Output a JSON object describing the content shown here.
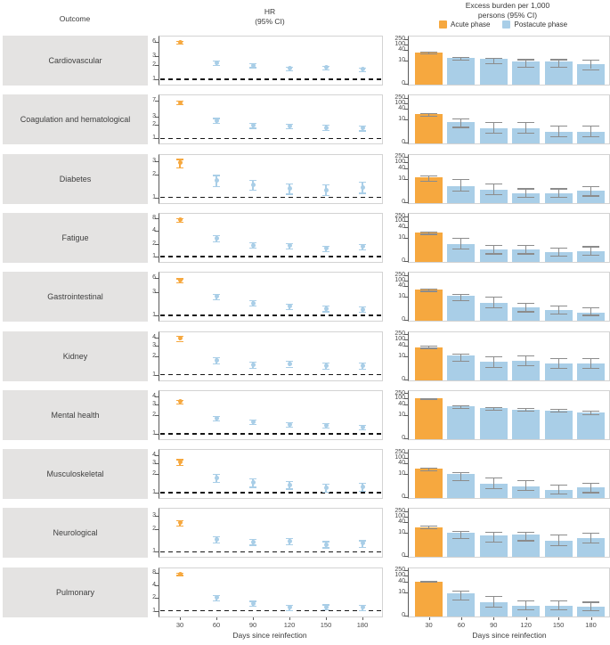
{
  "figure": {
    "header": {
      "outcome_col_label": "Outcome",
      "hr_title": [
        "HR",
        "(95% CI)"
      ],
      "burden_title": [
        "Excess burden per 1,000",
        "persons (95% CI)"
      ],
      "legend": [
        {
          "label": "Acute phase",
          "color": "#F6A83F"
        },
        {
          "label": "Postacute phase",
          "color": "#A9CEE7"
        }
      ]
    },
    "x_axis": {
      "label": "Days since reinfection",
      "ticks": [
        30,
        60,
        90,
        120,
        150,
        180
      ]
    }
  },
  "colors": {
    "acute": "#F6A83F",
    "postacute": "#A9CEE7",
    "bar_error": "#8C8C8C",
    "label_box": "#E4E3E2",
    "reference_line": "#161616",
    "axis": "#5a5a5a",
    "panel_border": "#D3D3D3"
  },
  "chart_data": [
    {
      "type": "scatter",
      "title": "HR (95% CI)",
      "x_label": "Days since reinfection",
      "x": [
        30,
        60,
        90,
        120,
        150,
        180
      ],
      "y_scale": "log",
      "reference_line_y": 1,
      "point_format": [
        "estimate",
        "ci_lower",
        "ci_upper"
      ],
      "series_note": "Day 30 = Acute phase (orange); days 60-180 = Postacute phase (blue)",
      "rows": [
        {
          "outcome": "Cardiovascular",
          "y_ticks": [
            1,
            2,
            3,
            6
          ],
          "points": [
            [
              5.8,
              5.4,
              6.3
            ],
            [
              2.2,
              2.0,
              2.4
            ],
            [
              1.95,
              1.78,
              2.15
            ],
            [
              1.7,
              1.55,
              1.85
            ],
            [
              1.75,
              1.6,
              1.9
            ],
            [
              1.6,
              1.45,
              1.75
            ]
          ]
        },
        {
          "outcome": "Coagulation and hematological",
          "y_ticks": [
            1,
            2,
            3,
            7
          ],
          "points": [
            [
              6.3,
              5.8,
              6.9
            ],
            [
              2.5,
              2.2,
              2.85
            ],
            [
              1.95,
              1.72,
              2.2
            ],
            [
              1.9,
              1.7,
              2.15
            ],
            [
              1.75,
              1.55,
              2.0
            ],
            [
              1.7,
              1.5,
              1.92
            ]
          ]
        },
        {
          "outcome": "Diabetes",
          "y_ticks": [
            1,
            2,
            3
          ],
          "points": [
            [
              2.85,
              2.5,
              3.2
            ],
            [
              1.65,
              1.4,
              1.97
            ],
            [
              1.45,
              1.25,
              1.7
            ],
            [
              1.3,
              1.12,
              1.52
            ],
            [
              1.25,
              1.07,
              1.47
            ],
            [
              1.35,
              1.15,
              1.6
            ]
          ]
        },
        {
          "outcome": "Fatigue",
          "y_ticks": [
            1,
            2,
            4,
            8
          ],
          "points": [
            [
              7.4,
              6.75,
              8.1
            ],
            [
              2.7,
              2.3,
              3.2
            ],
            [
              1.85,
              1.6,
              2.2
            ],
            [
              1.8,
              1.55,
              2.1
            ],
            [
              1.55,
              1.32,
              1.82
            ],
            [
              1.7,
              1.45,
              2.0
            ]
          ]
        },
        {
          "outcome": "Gastrointestinal",
          "y_ticks": [
            1,
            3,
            6
          ],
          "points": [
            [
              5.3,
              4.85,
              5.85
            ],
            [
              2.45,
              2.15,
              2.8
            ],
            [
              1.8,
              1.6,
              2.05
            ],
            [
              1.55,
              1.37,
              1.75
            ],
            [
              1.4,
              1.22,
              1.6
            ],
            [
              1.35,
              1.18,
              1.55
            ]
          ]
        },
        {
          "outcome": "Kidney",
          "y_ticks": [
            1,
            2,
            3,
            4
          ],
          "points": [
            [
              3.9,
              3.55,
              4.3
            ],
            [
              1.7,
              1.5,
              1.92
            ],
            [
              1.45,
              1.3,
              1.62
            ],
            [
              1.5,
              1.35,
              1.67
            ],
            [
              1.4,
              1.26,
              1.57
            ],
            [
              1.4,
              1.25,
              1.56
            ]
          ]
        },
        {
          "outcome": "Mental health",
          "y_ticks": [
            1,
            2,
            3,
            4
          ],
          "points": [
            [
              3.3,
              3.1,
              3.52
            ],
            [
              1.8,
              1.66,
              1.95
            ],
            [
              1.55,
              1.43,
              1.68
            ],
            [
              1.4,
              1.3,
              1.52
            ],
            [
              1.35,
              1.25,
              1.47
            ],
            [
              1.28,
              1.18,
              1.4
            ]
          ]
        },
        {
          "outcome": "Musculoskeletal",
          "y_ticks": [
            1,
            2,
            3,
            4
          ],
          "points": [
            [
              3.15,
              2.82,
              3.5
            ],
            [
              1.75,
              1.5,
              2.02
            ],
            [
              1.45,
              1.25,
              1.7
            ],
            [
              1.35,
              1.17,
              1.56
            ],
            [
              1.2,
              1.03,
              1.4
            ],
            [
              1.25,
              1.08,
              1.45
            ]
          ]
        },
        {
          "outcome": "Neurological",
          "y_ticks": [
            1,
            2,
            3
          ],
          "points": [
            [
              2.4,
              2.2,
              2.62
            ],
            [
              1.45,
              1.32,
              1.6
            ],
            [
              1.35,
              1.24,
              1.48
            ],
            [
              1.38,
              1.26,
              1.5
            ],
            [
              1.25,
              1.14,
              1.38
            ],
            [
              1.3,
              1.17,
              1.42
            ]
          ]
        },
        {
          "outcome": "Pulmonary",
          "y_ticks": [
            1,
            2,
            4,
            8
          ],
          "points": [
            [
              7.6,
              7.1,
              8.15
            ],
            [
              2.05,
              1.8,
              2.35
            ],
            [
              1.5,
              1.3,
              1.73
            ],
            [
              1.2,
              1.04,
              1.4
            ],
            [
              1.25,
              1.1,
              1.43
            ],
            [
              1.2,
              1.05,
              1.38
            ]
          ]
        }
      ]
    },
    {
      "type": "bar",
      "title": "Excess burden per 1,000 persons (95% CI)",
      "x_label": "Days since reinfection",
      "x": [
        30,
        60,
        90,
        120,
        150,
        180
      ],
      "y_scale": "symlog",
      "y_ticks": [
        0,
        10,
        40,
        100,
        250
      ],
      "bar_format": [
        "estimate",
        "ci_lower",
        "ci_upper"
      ],
      "series_note": "Day 30 bar = Acute phase (orange); days 60-180 = Postacute phase (blue)",
      "rows": [
        {
          "outcome": "Cardiovascular",
          "bars": [
            [
              30,
              27,
              34
            ],
            [
              14,
              11,
              17
            ],
            [
              12,
              9,
              15
            ],
            [
              9.5,
              7.5,
              12
            ],
            [
              9.5,
              7.5,
              12
            ],
            [
              8.5,
              6.5,
              11
            ]
          ]
        },
        {
          "outcome": "Coagulation and hematological",
          "bars": [
            [
              20,
              17,
              23
            ],
            [
              9,
              7,
              12
            ],
            [
              6.5,
              4.5,
              9
            ],
            [
              6.5,
              4.5,
              9
            ],
            [
              5,
              3,
              7.5
            ],
            [
              5,
              3,
              7.5
            ]
          ]
        },
        {
          "outcome": "Diabetes",
          "bars": [
            [
              12,
              9,
              15
            ],
            [
              7,
              5,
              10
            ],
            [
              5.5,
              3.5,
              8
            ],
            [
              4,
              2.5,
              6
            ],
            [
              4,
              2.5,
              6
            ],
            [
              5,
              3,
              7
            ]
          ]
        },
        {
          "outcome": "Fatigue",
          "bars": [
            [
              20,
              17,
              23
            ],
            [
              7.5,
              5.5,
              10
            ],
            [
              5,
              3.5,
              7
            ],
            [
              5,
              3.5,
              7
            ],
            [
              4,
              2.5,
              6
            ],
            [
              4.5,
              3,
              6.5
            ]
          ]
        },
        {
          "outcome": "Gastrointestinal",
          "bars": [
            [
              25,
              22,
              29
            ],
            [
              11,
              8.5,
              14
            ],
            [
              7.5,
              5.5,
              10
            ],
            [
              5.5,
              4,
              7.5
            ],
            [
              4.5,
              3,
              6.5
            ],
            [
              3.5,
              2.5,
              5.5
            ]
          ]
        },
        {
          "outcome": "Kidney",
          "bars": [
            [
              32,
              29,
              37
            ],
            [
              10.5,
              8,
              13
            ],
            [
              7.5,
              5.5,
              10
            ],
            [
              8,
              6,
              10.5
            ],
            [
              7,
              5,
              9
            ],
            [
              7,
              5,
              9
            ]
          ]
        },
        {
          "outcome": "Mental health",
          "bars": [
            [
              100,
              93,
              108
            ],
            [
              30,
              26,
              35
            ],
            [
              24,
              20,
              28
            ],
            [
              20,
              17,
              24
            ],
            [
              18,
              15,
              22
            ],
            [
              14,
              11,
              18
            ]
          ]
        },
        {
          "outcome": "Musculoskeletal",
          "bars": [
            [
              20,
              17,
              23
            ],
            [
              10,
              7.5,
              13
            ],
            [
              6,
              4,
              8.5
            ],
            [
              5,
              3.5,
              7.5
            ],
            [
              3.5,
              2,
              5.5
            ],
            [
              4.5,
              2.5,
              6.5
            ]
          ]
        },
        {
          "outcome": "Neurological",
          "bars": [
            [
              22,
              19,
              26
            ],
            [
              10.5,
              8,
              13
            ],
            [
              9,
              6.5,
              11.5
            ],
            [
              9.5,
              7,
              12
            ],
            [
              7,
              5,
              9.5
            ],
            [
              8,
              6,
              10.5
            ]
          ]
        },
        {
          "outcome": "Pulmonary",
          "bars": [
            [
              42,
              38,
              47
            ],
            [
              9.5,
              7,
              12
            ],
            [
              6,
              4,
              8.5
            ],
            [
              4.5,
              3,
              6.5
            ],
            [
              4.5,
              3,
              6.5
            ],
            [
              4,
              2.5,
              6
            ]
          ]
        }
      ]
    }
  ]
}
